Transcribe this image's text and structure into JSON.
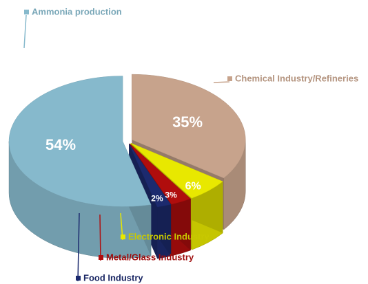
{
  "chart_data": {
    "type": "pie3d",
    "categories": [
      "Chemical Industry/Refineries",
      "Electronic Industry",
      "Metal/Glass Industry",
      "Food Industry",
      "Ammonia production"
    ],
    "values": [
      35,
      6,
      3,
      2,
      54
    ],
    "value_labels": [
      "35%",
      "6%",
      "3%",
      "2%",
      "54%"
    ],
    "colors": [
      "#c7a38c",
      "#e8e800",
      "#b00d0d",
      "#1c2a6e",
      "#86b9cc"
    ]
  }
}
